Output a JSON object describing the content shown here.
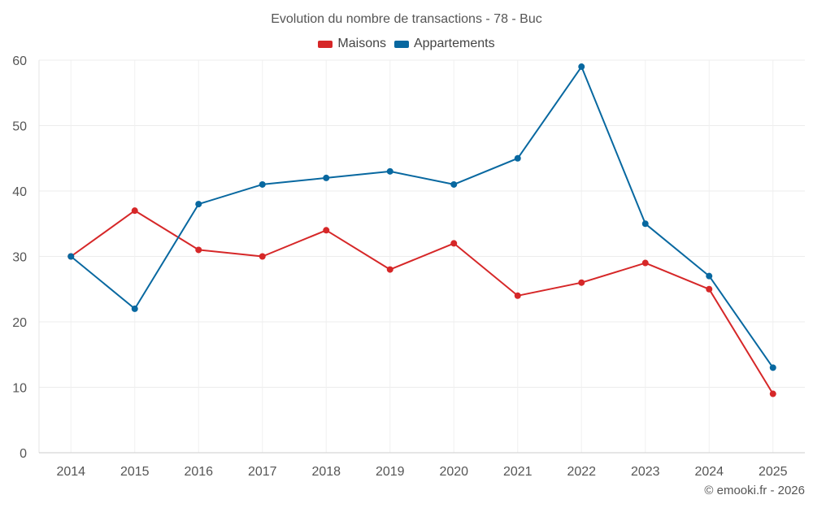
{
  "chart_data": {
    "type": "line",
    "title": "Evolution du nombre de transactions - 78 - Buc",
    "xlabel": "",
    "ylabel": "",
    "categories": [
      "2014",
      "2015",
      "2016",
      "2017",
      "2018",
      "2019",
      "2020",
      "2021",
      "2022",
      "2023",
      "2024",
      "2025"
    ],
    "ylim": [
      0,
      60
    ],
    "yticks": [
      0,
      10,
      20,
      30,
      40,
      50,
      60
    ],
    "grid": true,
    "legend_position": "top-center",
    "series": [
      {
        "name": "Maisons",
        "color": "#d62728",
        "values": [
          30,
          37,
          31,
          30,
          34,
          28,
          32,
          24,
          26,
          29,
          25,
          9
        ]
      },
      {
        "name": "Appartements",
        "color": "#0868a0",
        "values": [
          30,
          22,
          38,
          41,
          42,
          43,
          41,
          45,
          59,
          35,
          27,
          13
        ]
      }
    ]
  },
  "credit": "© emooki.fr - 2026"
}
